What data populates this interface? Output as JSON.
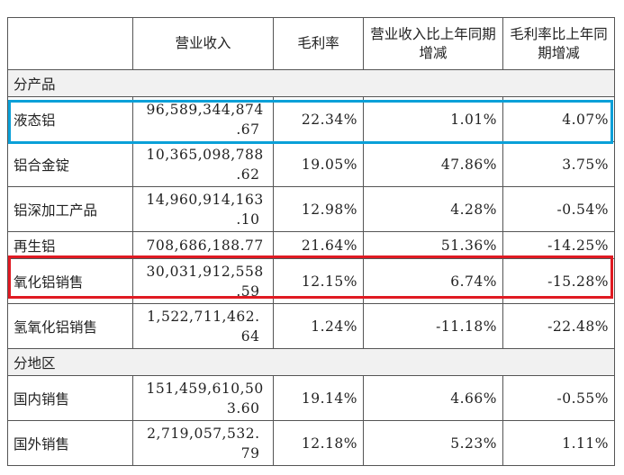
{
  "header": {
    "col_revenue": "营业收入",
    "col_margin": "毛利率",
    "col_rev_yoy": "营业收入比上年同期增减",
    "col_margin_yoy": "毛利率比上年同期增减"
  },
  "sections": {
    "by_product": "分产品",
    "by_region": "分地区"
  },
  "product_rows": [
    {
      "name": "液态铝",
      "revenue_line1": "96,589,344,874",
      "revenue_line2": ".67",
      "margin": "22.34%",
      "rev_yoy": "1.01%",
      "margin_yoy": "4.07%"
    },
    {
      "name": "铝合金锭",
      "revenue_line1": "10,365,098,788",
      "revenue_line2": ".62",
      "margin": "19.05%",
      "rev_yoy": "47.86%",
      "margin_yoy": "3.75%"
    },
    {
      "name": "铝深加工产品",
      "revenue_line1": "14,960,914,163",
      "revenue_line2": ".10",
      "margin": "12.98%",
      "rev_yoy": "4.28%",
      "margin_yoy": "-0.54%"
    },
    {
      "name": "再生铝",
      "revenue_line1": "708,686,188.77",
      "revenue_line2": "",
      "margin": "21.64%",
      "rev_yoy": "51.36%",
      "margin_yoy": "-14.25%"
    },
    {
      "name": "氧化铝销售",
      "revenue_line1": "30,031,912,558",
      "revenue_line2": ".59",
      "margin": "12.15%",
      "rev_yoy": "6.74%",
      "margin_yoy": "-15.28%"
    },
    {
      "name": "氢氧化铝销售",
      "revenue_line1": "1,522,711,462.",
      "revenue_line2": "64",
      "margin": "1.24%",
      "rev_yoy": "-11.18%",
      "margin_yoy": "-22.48%"
    }
  ],
  "region_rows": [
    {
      "name": "国内销售",
      "revenue_line1": "151,459,610,50",
      "revenue_line2": "3.60",
      "margin": "19.14%",
      "rev_yoy": "4.66%",
      "margin_yoy": "-0.55%"
    },
    {
      "name": "国外销售",
      "revenue_line1": "2,719,057,532.",
      "revenue_line2": "79",
      "margin": "12.18%",
      "rev_yoy": "5.23%",
      "margin_yoy": "1.11%"
    }
  ],
  "highlights": {
    "blue_color": "#0aa0d8",
    "red_color": "#e01a22"
  }
}
